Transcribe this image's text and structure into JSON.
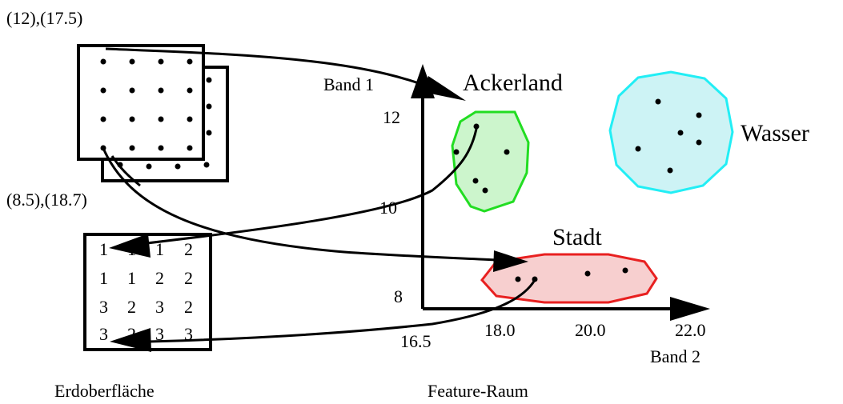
{
  "left": {
    "coord_top": "(12),(17.5)",
    "coord_bottom": "(8.5),(18.7)",
    "caption": "Erdoberfläche",
    "grid": [
      [
        "1",
        "1",
        "1",
        "2"
      ],
      [
        "1",
        "1",
        "2",
        "2"
      ],
      [
        "3",
        "2",
        "3",
        "2"
      ],
      [
        "3",
        "2",
        "3",
        "3"
      ]
    ]
  },
  "feature": {
    "caption": "Feature-Raum",
    "axis_y_label": "Band 1",
    "axis_x_label": "Band 2",
    "y_ticks": [
      "12",
      "10",
      "8"
    ],
    "x_ticks": [
      "16.5",
      "18.0",
      "20.0",
      "22.0"
    ],
    "classes": [
      {
        "name": "Ackerland",
        "fill": "#ccf5cc",
        "stroke": "#22dd22"
      },
      {
        "name": "Wasser",
        "fill": "#cdf3f5",
        "stroke": "#22eef5"
      },
      {
        "name": "Stadt",
        "fill": "#f7cfcf",
        "stroke": "#e82020"
      }
    ]
  },
  "colors": {
    "ink": "#000000"
  }
}
